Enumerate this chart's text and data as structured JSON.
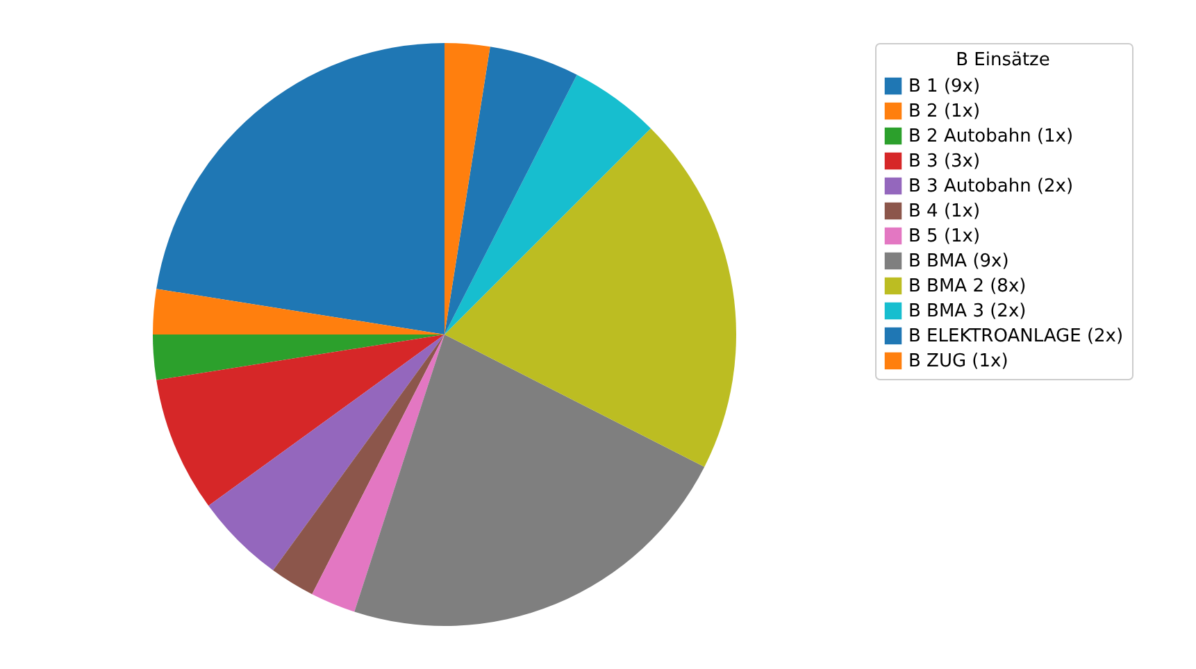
{
  "chart_data": {
    "type": "pie",
    "legend_title": "B Einsätze",
    "legend": "right",
    "categories": [
      "B 1 (9x)",
      "B 2 (1x)",
      "B 2 Autobahn (1x)",
      "B 3 (3x)",
      "B 3 Autobahn (2x)",
      "B 4 (1x)",
      "B 5 (1x)",
      "B BMA (9x)",
      "B BMA 2 (8x)",
      "B BMA 3 (2x)",
      "B ELEKTROANLAGE (2x)",
      "B ZUG (1x)"
    ],
    "values": [
      22.5,
      2.5,
      2.5,
      7.5,
      5,
      2.5,
      2.5,
      22.5,
      20,
      5,
      5,
      2.5
    ],
    "colors": [
      "#1f77b4",
      "#ff7f0e",
      "#2ca02c",
      "#d62728",
      "#9467bd",
      "#8c564b",
      "#e377c2",
      "#7f7f7f",
      "#bcbd22",
      "#17becf",
      "#1f77b4",
      "#ff7f0e"
    ]
  }
}
